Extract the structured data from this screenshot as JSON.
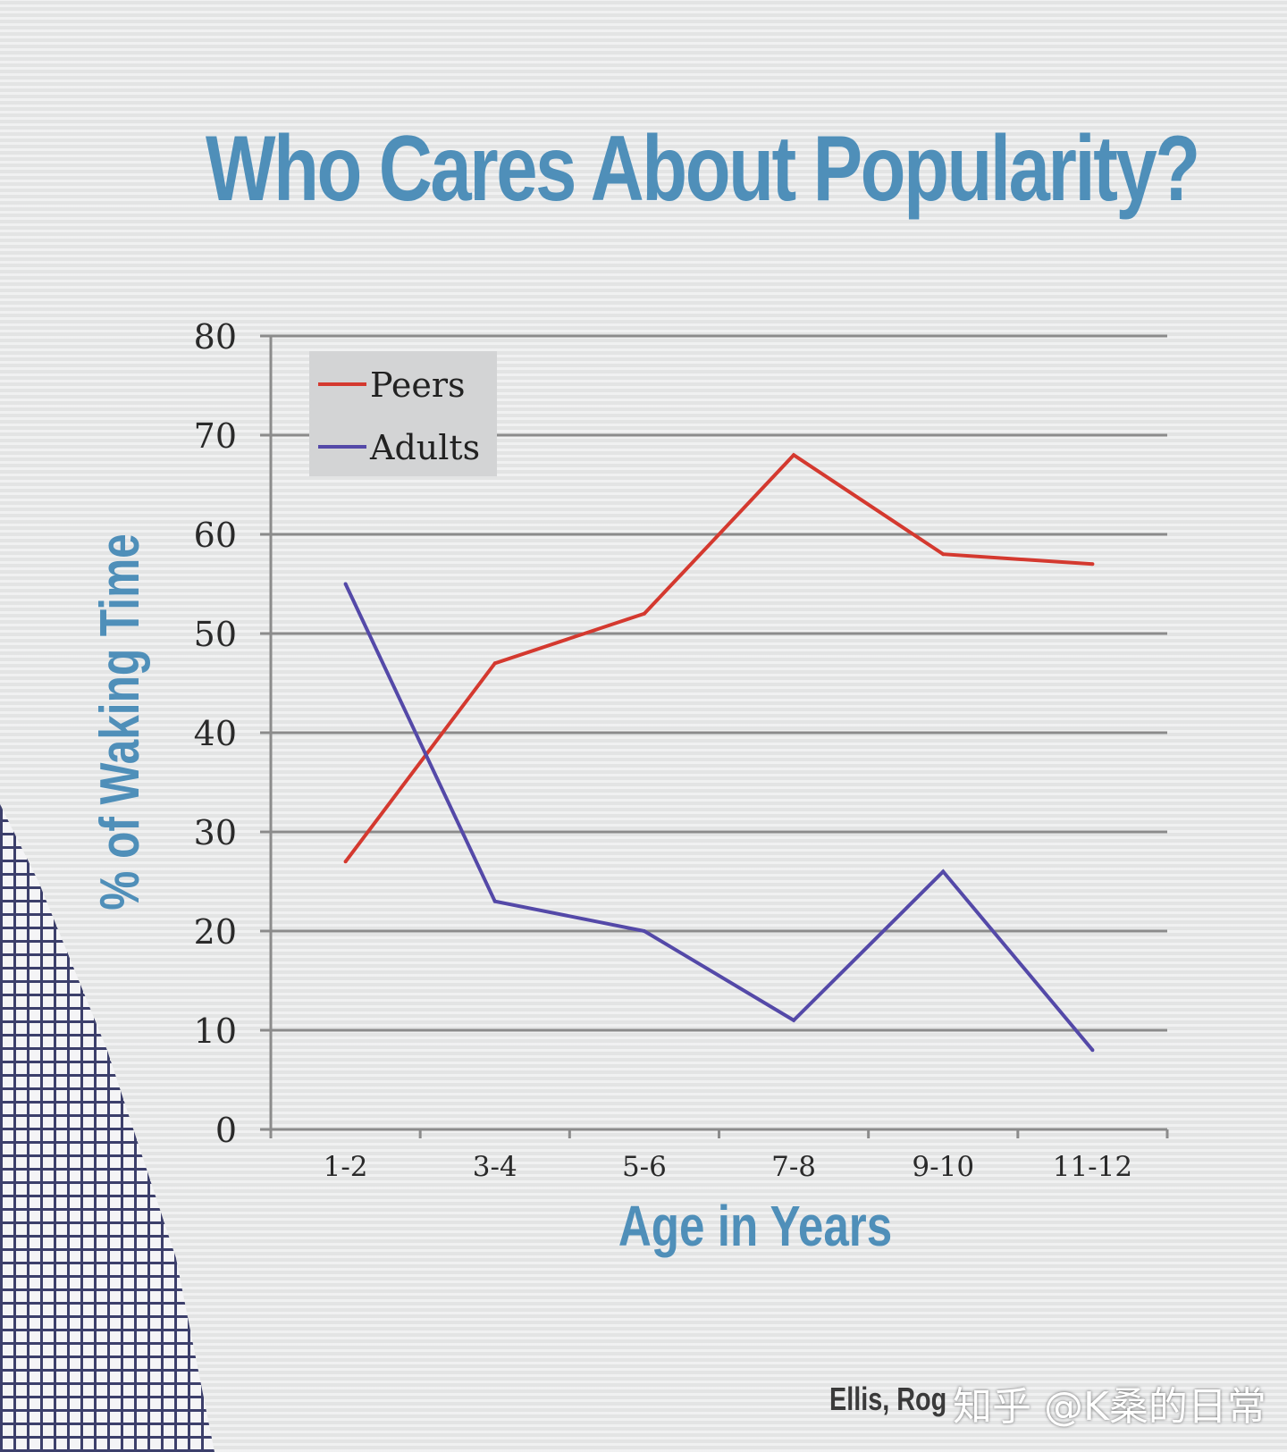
{
  "slide": {
    "title": "Who Cares About Popularity?",
    "credit": "Ellis, Rog",
    "watermark": "知乎 @K桑的日常"
  },
  "colors": {
    "title": "#4f8fb9",
    "peers": "#d4392f",
    "adults": "#5449a8",
    "grid": "#8b8b8b"
  },
  "chart_data": {
    "type": "line",
    "title": "Who Cares About Popularity?",
    "xlabel": "Age in Years",
    "ylabel": "% of Waking Time",
    "categories": [
      "1-2",
      "3-4",
      "5-6",
      "7-8",
      "9-10",
      "11-12"
    ],
    "series": [
      {
        "name": "Peers",
        "values": [
          27,
          47,
          52,
          68,
          58,
          57
        ]
      },
      {
        "name": "Adults",
        "values": [
          55,
          23,
          20,
          11,
          26,
          8
        ]
      }
    ],
    "ylim": [
      0,
      80
    ],
    "yticks": [
      0,
      10,
      20,
      30,
      40,
      50,
      60,
      70,
      80
    ],
    "grid": true,
    "legend_position": "top-left"
  }
}
